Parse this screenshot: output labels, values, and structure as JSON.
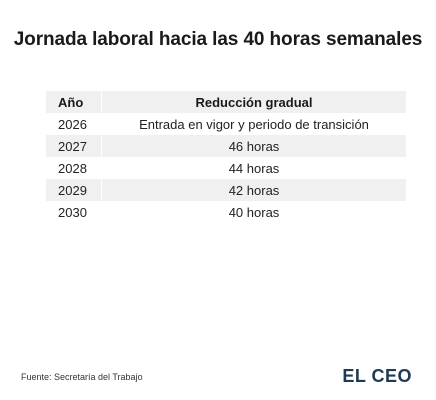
{
  "title": "Jornada laboral hacia las 40 horas semanales",
  "table": {
    "headers": [
      "Año",
      "Reducción gradual"
    ],
    "rows": [
      [
        "2026",
        "Entrada en vigor y periodo de transición"
      ],
      [
        "2027",
        "46 horas"
      ],
      [
        "2028",
        "44 horas"
      ],
      [
        "2029",
        "42 horas"
      ],
      [
        "2030",
        "40 horas"
      ]
    ]
  },
  "chart_data": {
    "type": "table",
    "title": "Jornada laboral hacia las 40 horas semanales",
    "columns": [
      "Año",
      "Reducción gradual"
    ],
    "rows": [
      [
        "2026",
        "Entrada en vigor y periodo de transición"
      ],
      [
        "2027",
        "46 horas"
      ],
      [
        "2028",
        "44 horas"
      ],
      [
        "2029",
        "42 horas"
      ],
      [
        "2030",
        "40 horas"
      ]
    ]
  },
  "footer": {
    "source": "Fuente: Secretaría del Trabajo",
    "logo": "EL CEO"
  },
  "colors": {
    "shade": "#f0f0f0",
    "logo": "#1f3a52"
  }
}
